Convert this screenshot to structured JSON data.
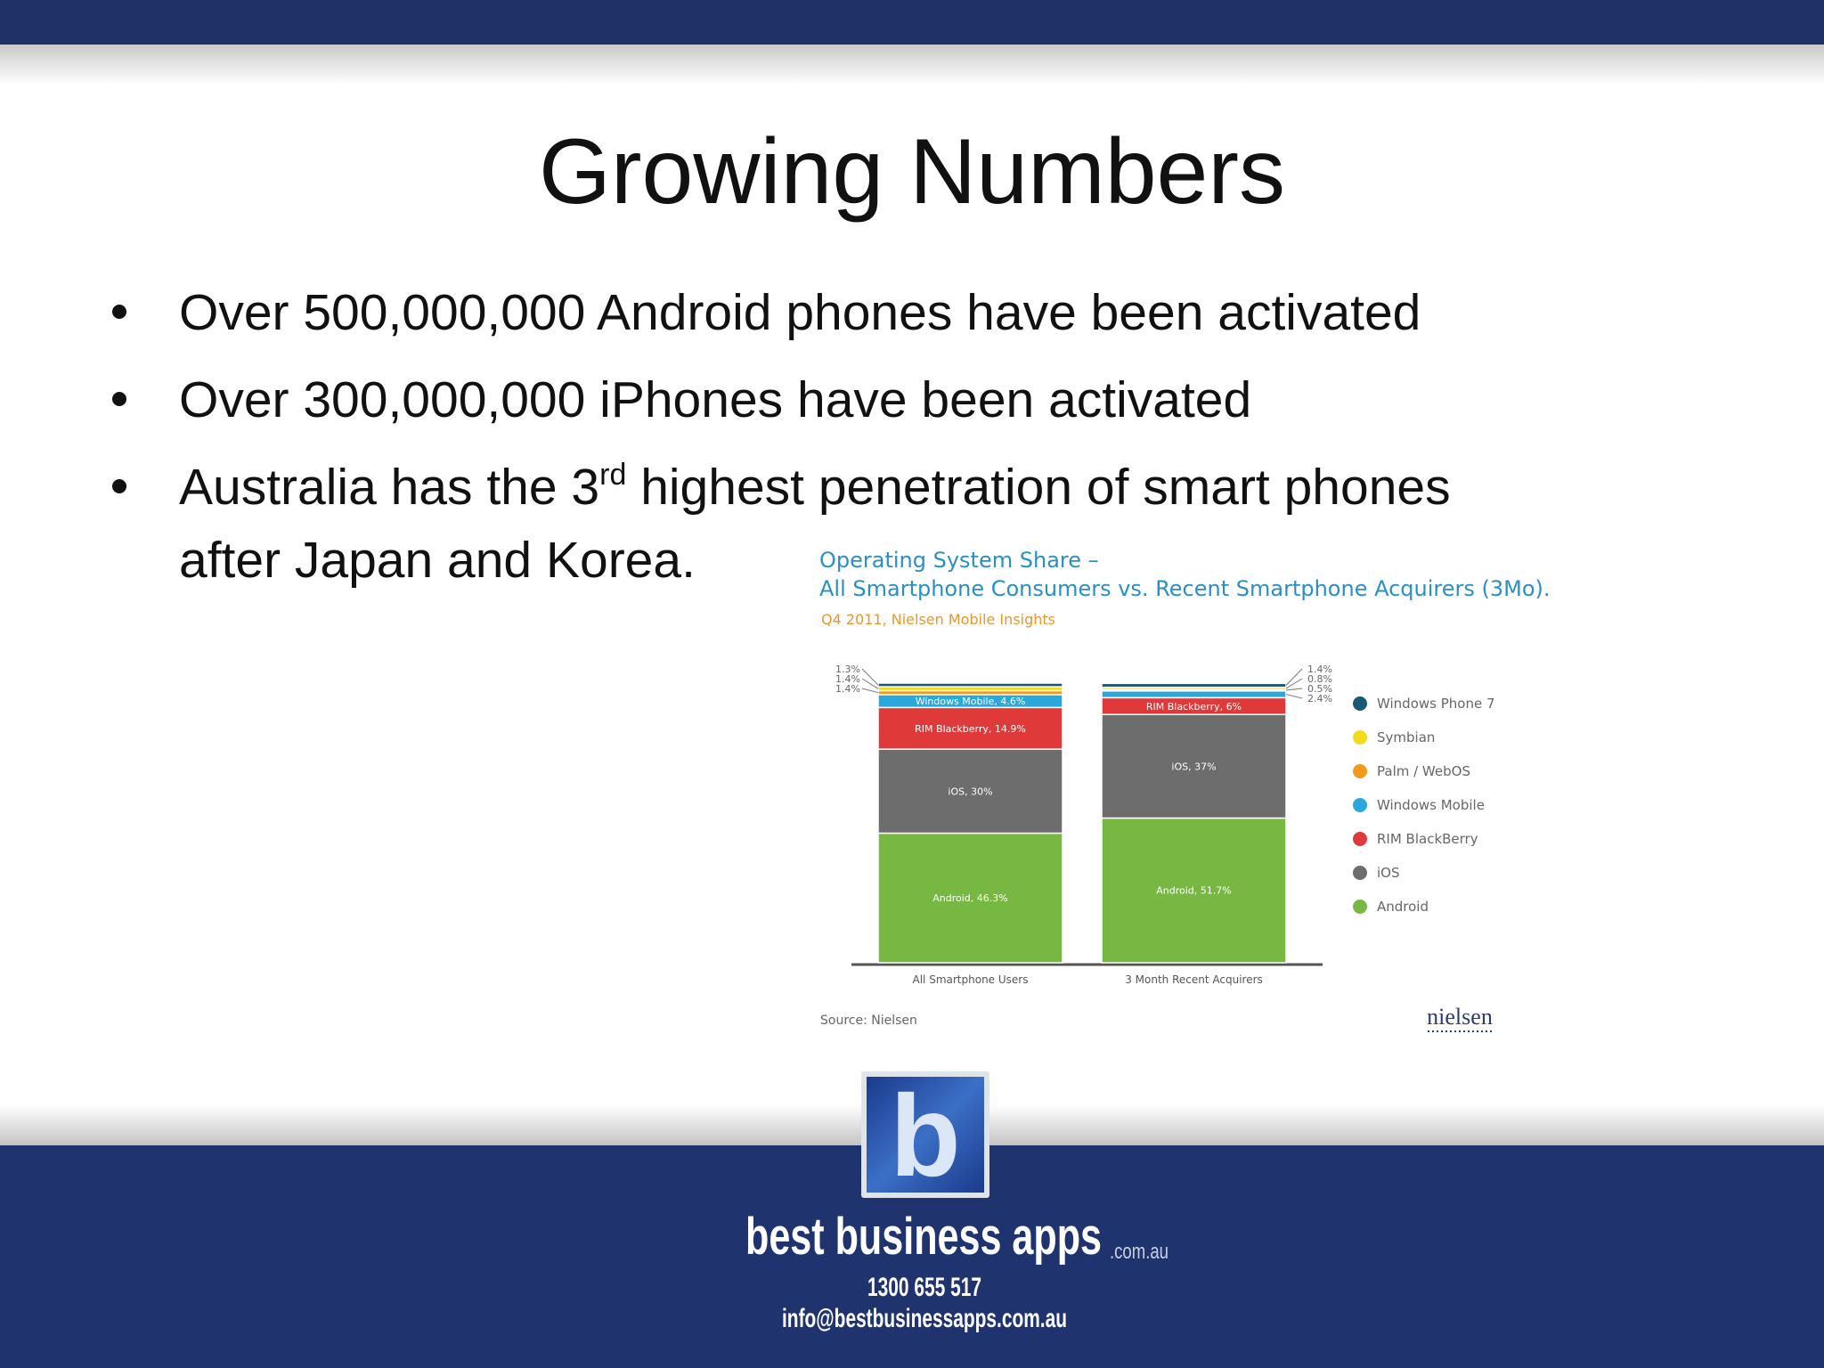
{
  "slide": {
    "title": "Growing Numbers",
    "bullets": [
      {
        "text": "Over 500,000,000 Android phones have been activated"
      },
      {
        "text": "Over 300,000,000 iPhones have been activated"
      },
      {
        "parts": [
          "Australia has the 3",
          "rd",
          " highest penetration of smart phones",
          "after Japan and Korea."
        ]
      }
    ]
  },
  "chart_data": {
    "type": "stacked-bar",
    "title": "Operating System Share –",
    "subtitle": "All Smartphone Consumers vs. Recent Smartphone Acquirers (3Mo).",
    "note": "Q4 2011, Nielsen Mobile Insights",
    "categories": [
      "All Smartphone Users",
      "3 Month Recent Acquirers"
    ],
    "series": [
      {
        "name": "Android",
        "color": "#77b843",
        "values": [
          46.3,
          51.7
        ],
        "value_labels": [
          "Android, 46.3%",
          "Android, 51.7%"
        ]
      },
      {
        "name": "iOS",
        "color": "#6d6d6d",
        "values": [
          30,
          37
        ],
        "value_labels": [
          "iOS, 30%",
          "iOS, 37%"
        ]
      },
      {
        "name": "RIM BlackBerry",
        "color": "#e0393a",
        "values": [
          14.9,
          6
        ],
        "value_labels": [
          "RIM Blackberry, 14.9%",
          "RIM Blackberry, 6%"
        ]
      },
      {
        "name": "Windows Mobile",
        "color": "#2aa8dc",
        "values": [
          4.6,
          2.4
        ],
        "value_labels": [
          "Windows Mobile, 4.6%",
          "2.4%"
        ]
      },
      {
        "name": "Palm / WebOS",
        "color": "#f29a1e",
        "values": [
          1.4,
          0.5
        ],
        "value_labels": [
          "1.4%",
          "0.5%"
        ]
      },
      {
        "name": "Symbian",
        "color": "#f2da1c",
        "values": [
          1.4,
          0.8
        ],
        "value_labels": [
          "1.4%",
          "0.8%"
        ]
      },
      {
        "name": "Windows Phone 7",
        "color": "#1a5878",
        "values": [
          1.3,
          1.4
        ],
        "value_labels": [
          "1.3%",
          "1.4%"
        ]
      }
    ],
    "source": "Source: Nielsen",
    "brand": "nielsen"
  },
  "footer": {
    "logo": "b",
    "brand": "best business apps",
    "domain": ".com.au",
    "phone": "1300 655 517",
    "email": "info@bestbusinessapps.com.au"
  }
}
